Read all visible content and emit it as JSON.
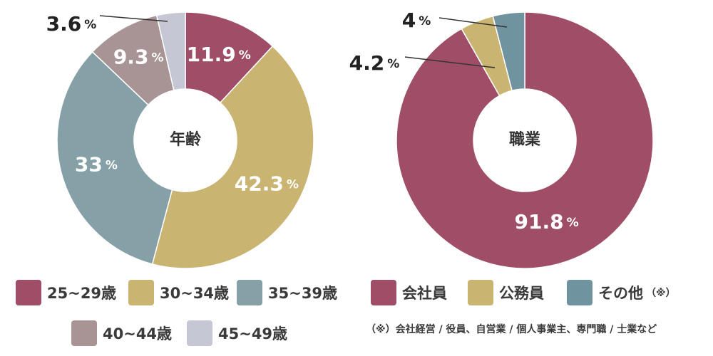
{
  "chart_data": [
    {
      "type": "pie",
      "title": "年齢",
      "categories": [
        "25~29歳",
        "30~34歳",
        "35~39歳",
        "40~44歳",
        "45~49歳"
      ],
      "values": [
        11.9,
        42.3,
        33,
        9.3,
        3.6
      ],
      "labels": [
        "11.9",
        "42.3",
        "33",
        "9.3",
        "3.6"
      ],
      "unit": "%",
      "colors": [
        "#a04e67",
        "#c9b472",
        "#86a0a8",
        "#a89495",
        "#c6c7d4"
      ]
    },
    {
      "type": "pie",
      "title": "職業",
      "categories": [
        "会社員",
        "公務員",
        "その他"
      ],
      "category_notes": [
        "",
        "",
        "（※）"
      ],
      "values": [
        91.8,
        4.2,
        4
      ],
      "labels": [
        "91.8",
        "4.2",
        "4"
      ],
      "unit": "%",
      "colors": [
        "#a04e67",
        "#c9b472",
        "#6f949f"
      ],
      "footnote": "（※）会社経営 / 役員、自営業 / 個人事業主、専門職 / 士業など"
    }
  ]
}
